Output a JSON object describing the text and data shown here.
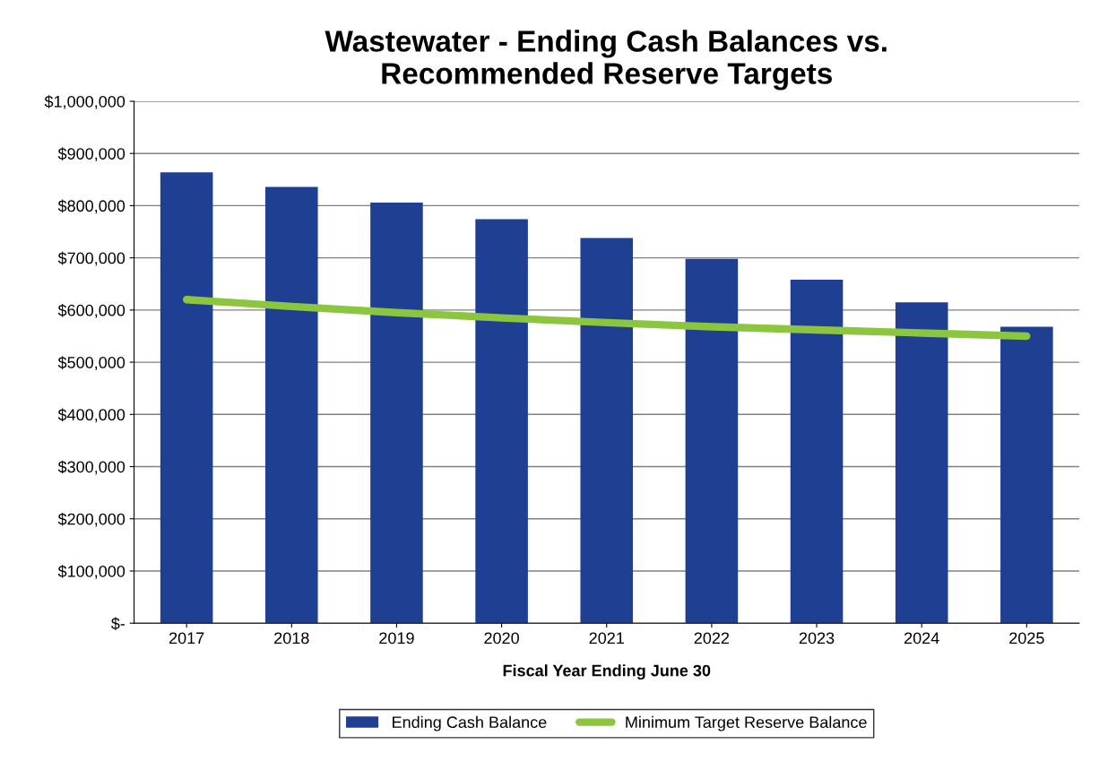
{
  "chart_data": {
    "type": "bar",
    "title": "Wastewater - Ending Cash Balances vs.\nRecommended Reserve Targets",
    "xlabel": "Fiscal Year Ending June 30",
    "categories": [
      "2017",
      "2018",
      "2019",
      "2020",
      "2021",
      "2022",
      "2023",
      "2024",
      "2025"
    ],
    "series": [
      {
        "name": "Ending Cash Balance",
        "color": "#1f3f93",
        "values": [
          864000,
          836000,
          806000,
          774000,
          738000,
          698000,
          658000,
          615000,
          568000
        ]
      },
      {
        "name": "Minimum Target Reserve Balance",
        "type": "line",
        "color": "#8cc63e",
        "values": [
          620000,
          607000,
          595000,
          585000,
          576000,
          568000,
          562000,
          556000,
          550000
        ]
      }
    ],
    "ylim": [
      0,
      1000000
    ],
    "yticks": [
      {
        "value": 0,
        "label": "$-"
      },
      {
        "value": 100000,
        "label": "$100,000"
      },
      {
        "value": 200000,
        "label": "$200,000"
      },
      {
        "value": 300000,
        "label": "$300,000"
      },
      {
        "value": 400000,
        "label": "$400,000"
      },
      {
        "value": 500000,
        "label": "$500,000"
      },
      {
        "value": 600000,
        "label": "$600,000"
      },
      {
        "value": 700000,
        "label": "$700,000"
      },
      {
        "value": 800000,
        "label": "$800,000"
      },
      {
        "value": 900000,
        "label": "$900,000"
      },
      {
        "value": 1000000,
        "label": "$1,000,000"
      }
    ],
    "grid": "y",
    "legend": "bottom",
    "marker": "none",
    "line_style": "solid"
  }
}
